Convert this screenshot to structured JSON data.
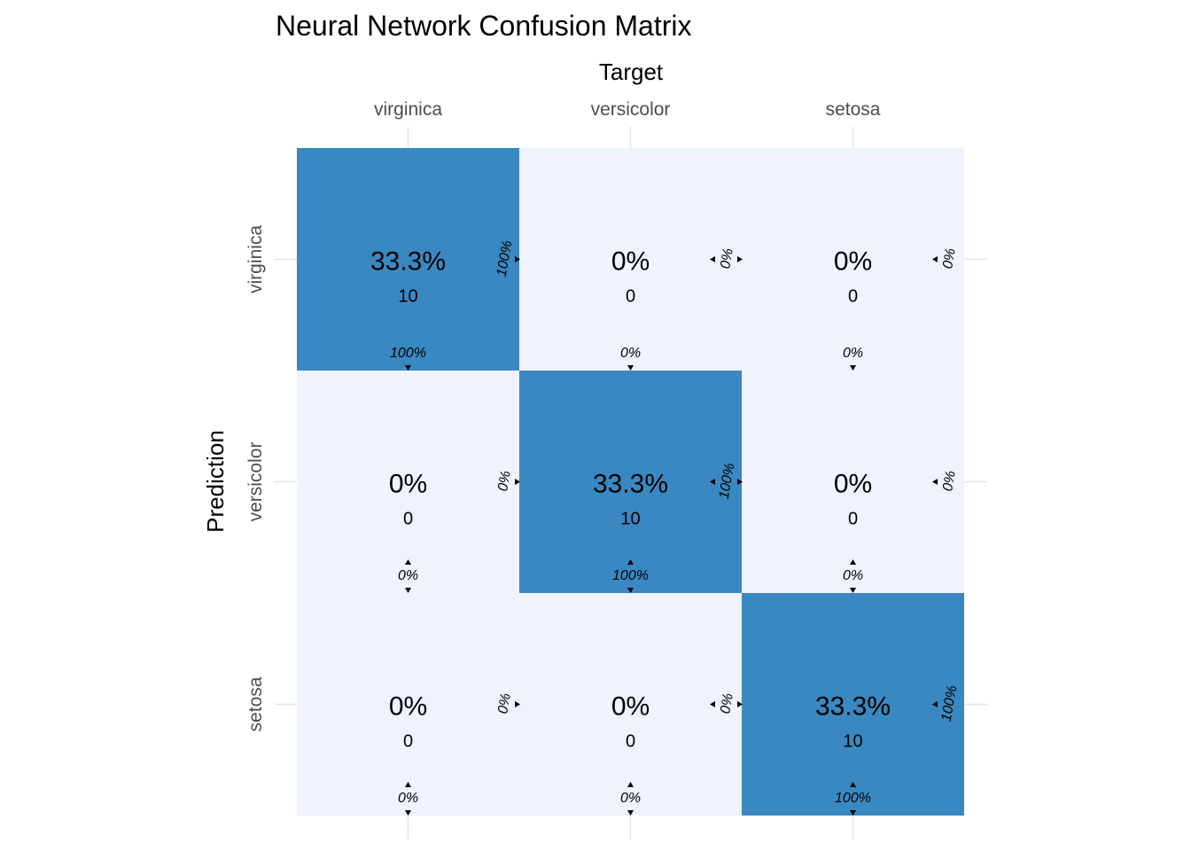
{
  "chart_data": {
    "type": "heatmap",
    "title": "Neural Network Confusion Matrix",
    "xlabel": "Target",
    "ylabel": "Prediction",
    "x_categories": [
      "virginica",
      "versicolor",
      "setosa"
    ],
    "y_categories": [
      "virginica",
      "versicolor",
      "setosa"
    ],
    "cells": [
      {
        "prediction": "virginica",
        "target": "virginica",
        "percent": "33.3%",
        "count": 10,
        "col_pct": "100%",
        "row_pct": "100%"
      },
      {
        "prediction": "virginica",
        "target": "versicolor",
        "percent": "0%",
        "count": 0,
        "col_pct": "0%",
        "row_pct": "0%"
      },
      {
        "prediction": "virginica",
        "target": "setosa",
        "percent": "0%",
        "count": 0,
        "col_pct": "0%",
        "row_pct": "0%"
      },
      {
        "prediction": "versicolor",
        "target": "virginica",
        "percent": "0%",
        "count": 0,
        "col_pct": "0%",
        "row_pct": "0%"
      },
      {
        "prediction": "versicolor",
        "target": "versicolor",
        "percent": "33.3%",
        "count": 10,
        "col_pct": "100%",
        "row_pct": "100%"
      },
      {
        "prediction": "versicolor",
        "target": "setosa",
        "percent": "0%",
        "count": 0,
        "col_pct": "0%",
        "row_pct": "0%"
      },
      {
        "prediction": "setosa",
        "target": "virginica",
        "percent": "0%",
        "count": 0,
        "col_pct": "0%",
        "row_pct": "0%"
      },
      {
        "prediction": "setosa",
        "target": "versicolor",
        "percent": "0%",
        "count": 0,
        "col_pct": "0%",
        "row_pct": "0%"
      },
      {
        "prediction": "setosa",
        "target": "setosa",
        "percent": "33.3%",
        "count": 10,
        "col_pct": "100%",
        "row_pct": "100%"
      }
    ],
    "colors": {
      "high": "#3a88c1",
      "low": "#eef3fe",
      "grid": "#e5e5e5"
    },
    "grid": true,
    "legend": "none"
  }
}
